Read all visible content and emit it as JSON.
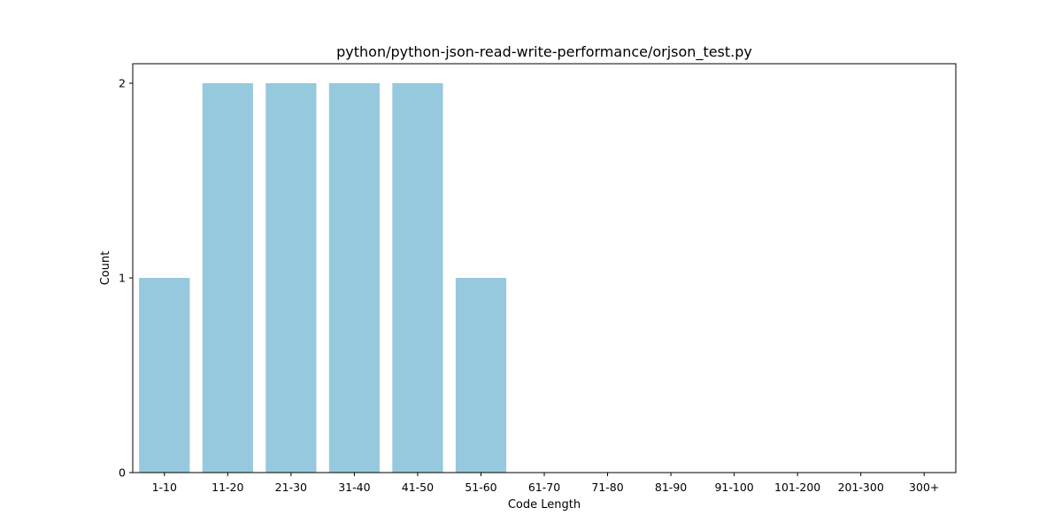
{
  "chart_data": {
    "type": "bar",
    "title": "python/python-json-read-write-performance/orjson_test.py",
    "xlabel": "Code Length",
    "ylabel": "Count",
    "categories": [
      "1-10",
      "11-20",
      "21-30",
      "31-40",
      "41-50",
      "51-60",
      "61-70",
      "71-80",
      "81-90",
      "91-100",
      "101-200",
      "201-300",
      "300+"
    ],
    "values": [
      1,
      2,
      2,
      2,
      2,
      1,
      0,
      0,
      0,
      0,
      0,
      0,
      0
    ],
    "yticks": [
      0,
      1,
      2
    ],
    "ylim": [
      0,
      2.1
    ],
    "grid": false,
    "legend": "none",
    "bar_color": "#96c9de"
  }
}
